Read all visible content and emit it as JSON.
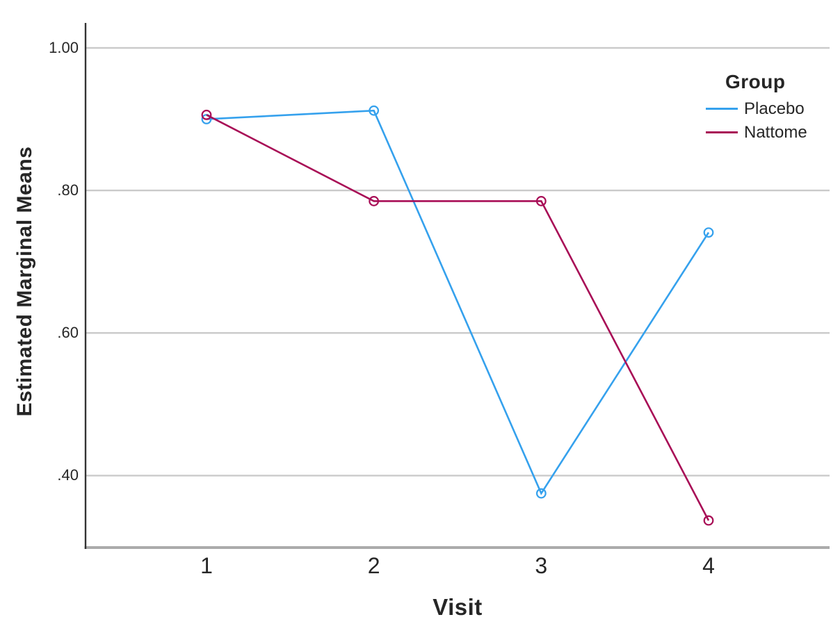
{
  "chart_data": {
    "type": "line",
    "x": [
      1,
      2,
      3,
      4
    ],
    "x_tick_labels": [
      "1",
      "2",
      "3",
      "4"
    ],
    "series": [
      {
        "name": "Placebo",
        "color": "#35A1ED",
        "values": [
          0.9,
          0.912,
          0.375,
          0.741
        ]
      },
      {
        "name": "Nattome",
        "color": "#A80D56",
        "values": [
          0.906,
          0.785,
          0.785,
          0.337
        ]
      }
    ],
    "title": "",
    "xlabel": "Visit",
    "ylabel": "Estimated Marginal Means",
    "y_ticks": [
      {
        "value": 1.0,
        "label": "1.00"
      },
      {
        "value": 0.8,
        "label": ".80"
      },
      {
        "value": 0.6,
        "label": ".60"
      },
      {
        "value": 0.4,
        "label": ".40"
      }
    ],
    "ylim": [
      0.299,
      1.035
    ],
    "grid": true,
    "marker": "open-circle",
    "legend": {
      "title": "Group",
      "position": "top-right",
      "entries": [
        "Placebo",
        "Nattome"
      ]
    },
    "axis_colors": {
      "gridline": "#CACACA",
      "x_axis_line": "#ABABAB",
      "y_axis_line": "#333333"
    }
  }
}
